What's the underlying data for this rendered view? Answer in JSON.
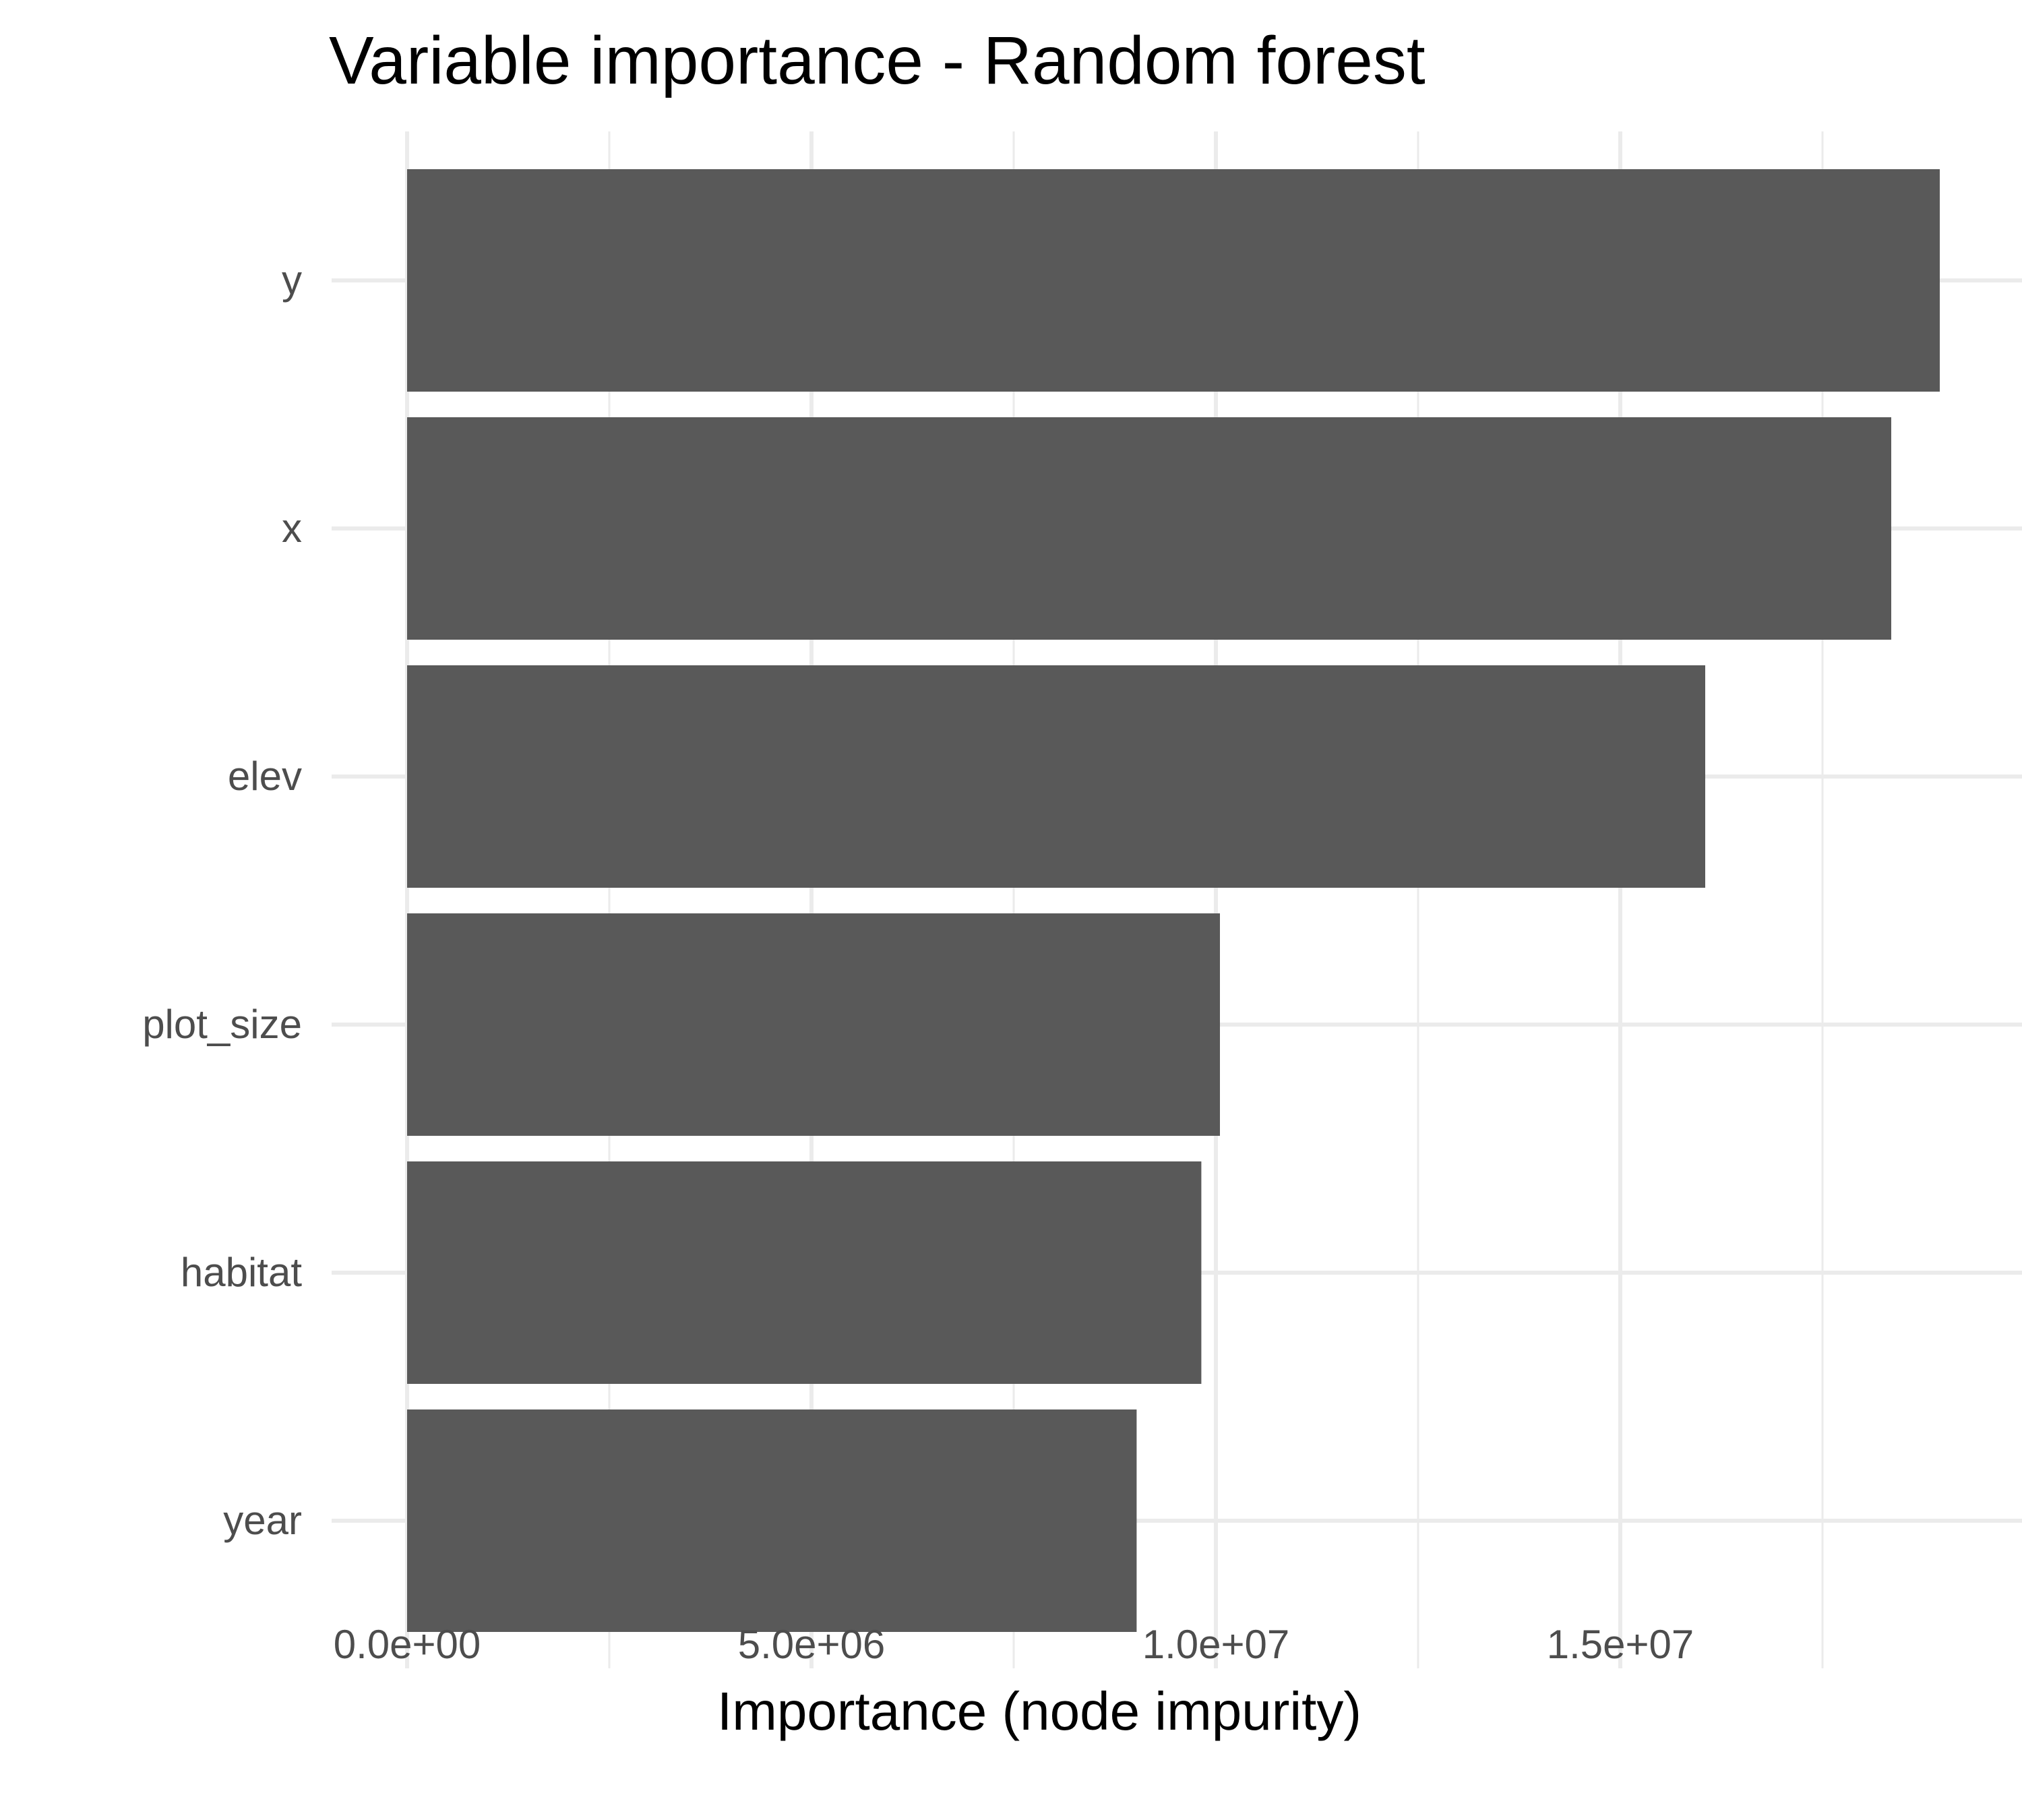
{
  "chart_data": {
    "type": "bar",
    "orientation": "horizontal",
    "title": "Variable importance - Random forest",
    "xlabel": "Importance (node impurity)",
    "ylabel": "",
    "categories": [
      "y",
      "x",
      "elev",
      "plot_size",
      "habitat",
      "year"
    ],
    "values": [
      18950000,
      18350000,
      16050000,
      10050000,
      9820000,
      9020000
    ],
    "xlim": [
      -950000,
      19900000
    ],
    "x_ticks": [
      0,
      5000000,
      10000000,
      15000000
    ],
    "x_tick_labels": [
      "0.0e+00",
      "5.0e+06",
      "1.0e+07",
      "1.5e+07"
    ],
    "x_minor_ticks": [
      2500000,
      7500000,
      12500000,
      17500000
    ],
    "grid": true,
    "bar_color": "#595959",
    "grid_color": "#ebebeb"
  }
}
